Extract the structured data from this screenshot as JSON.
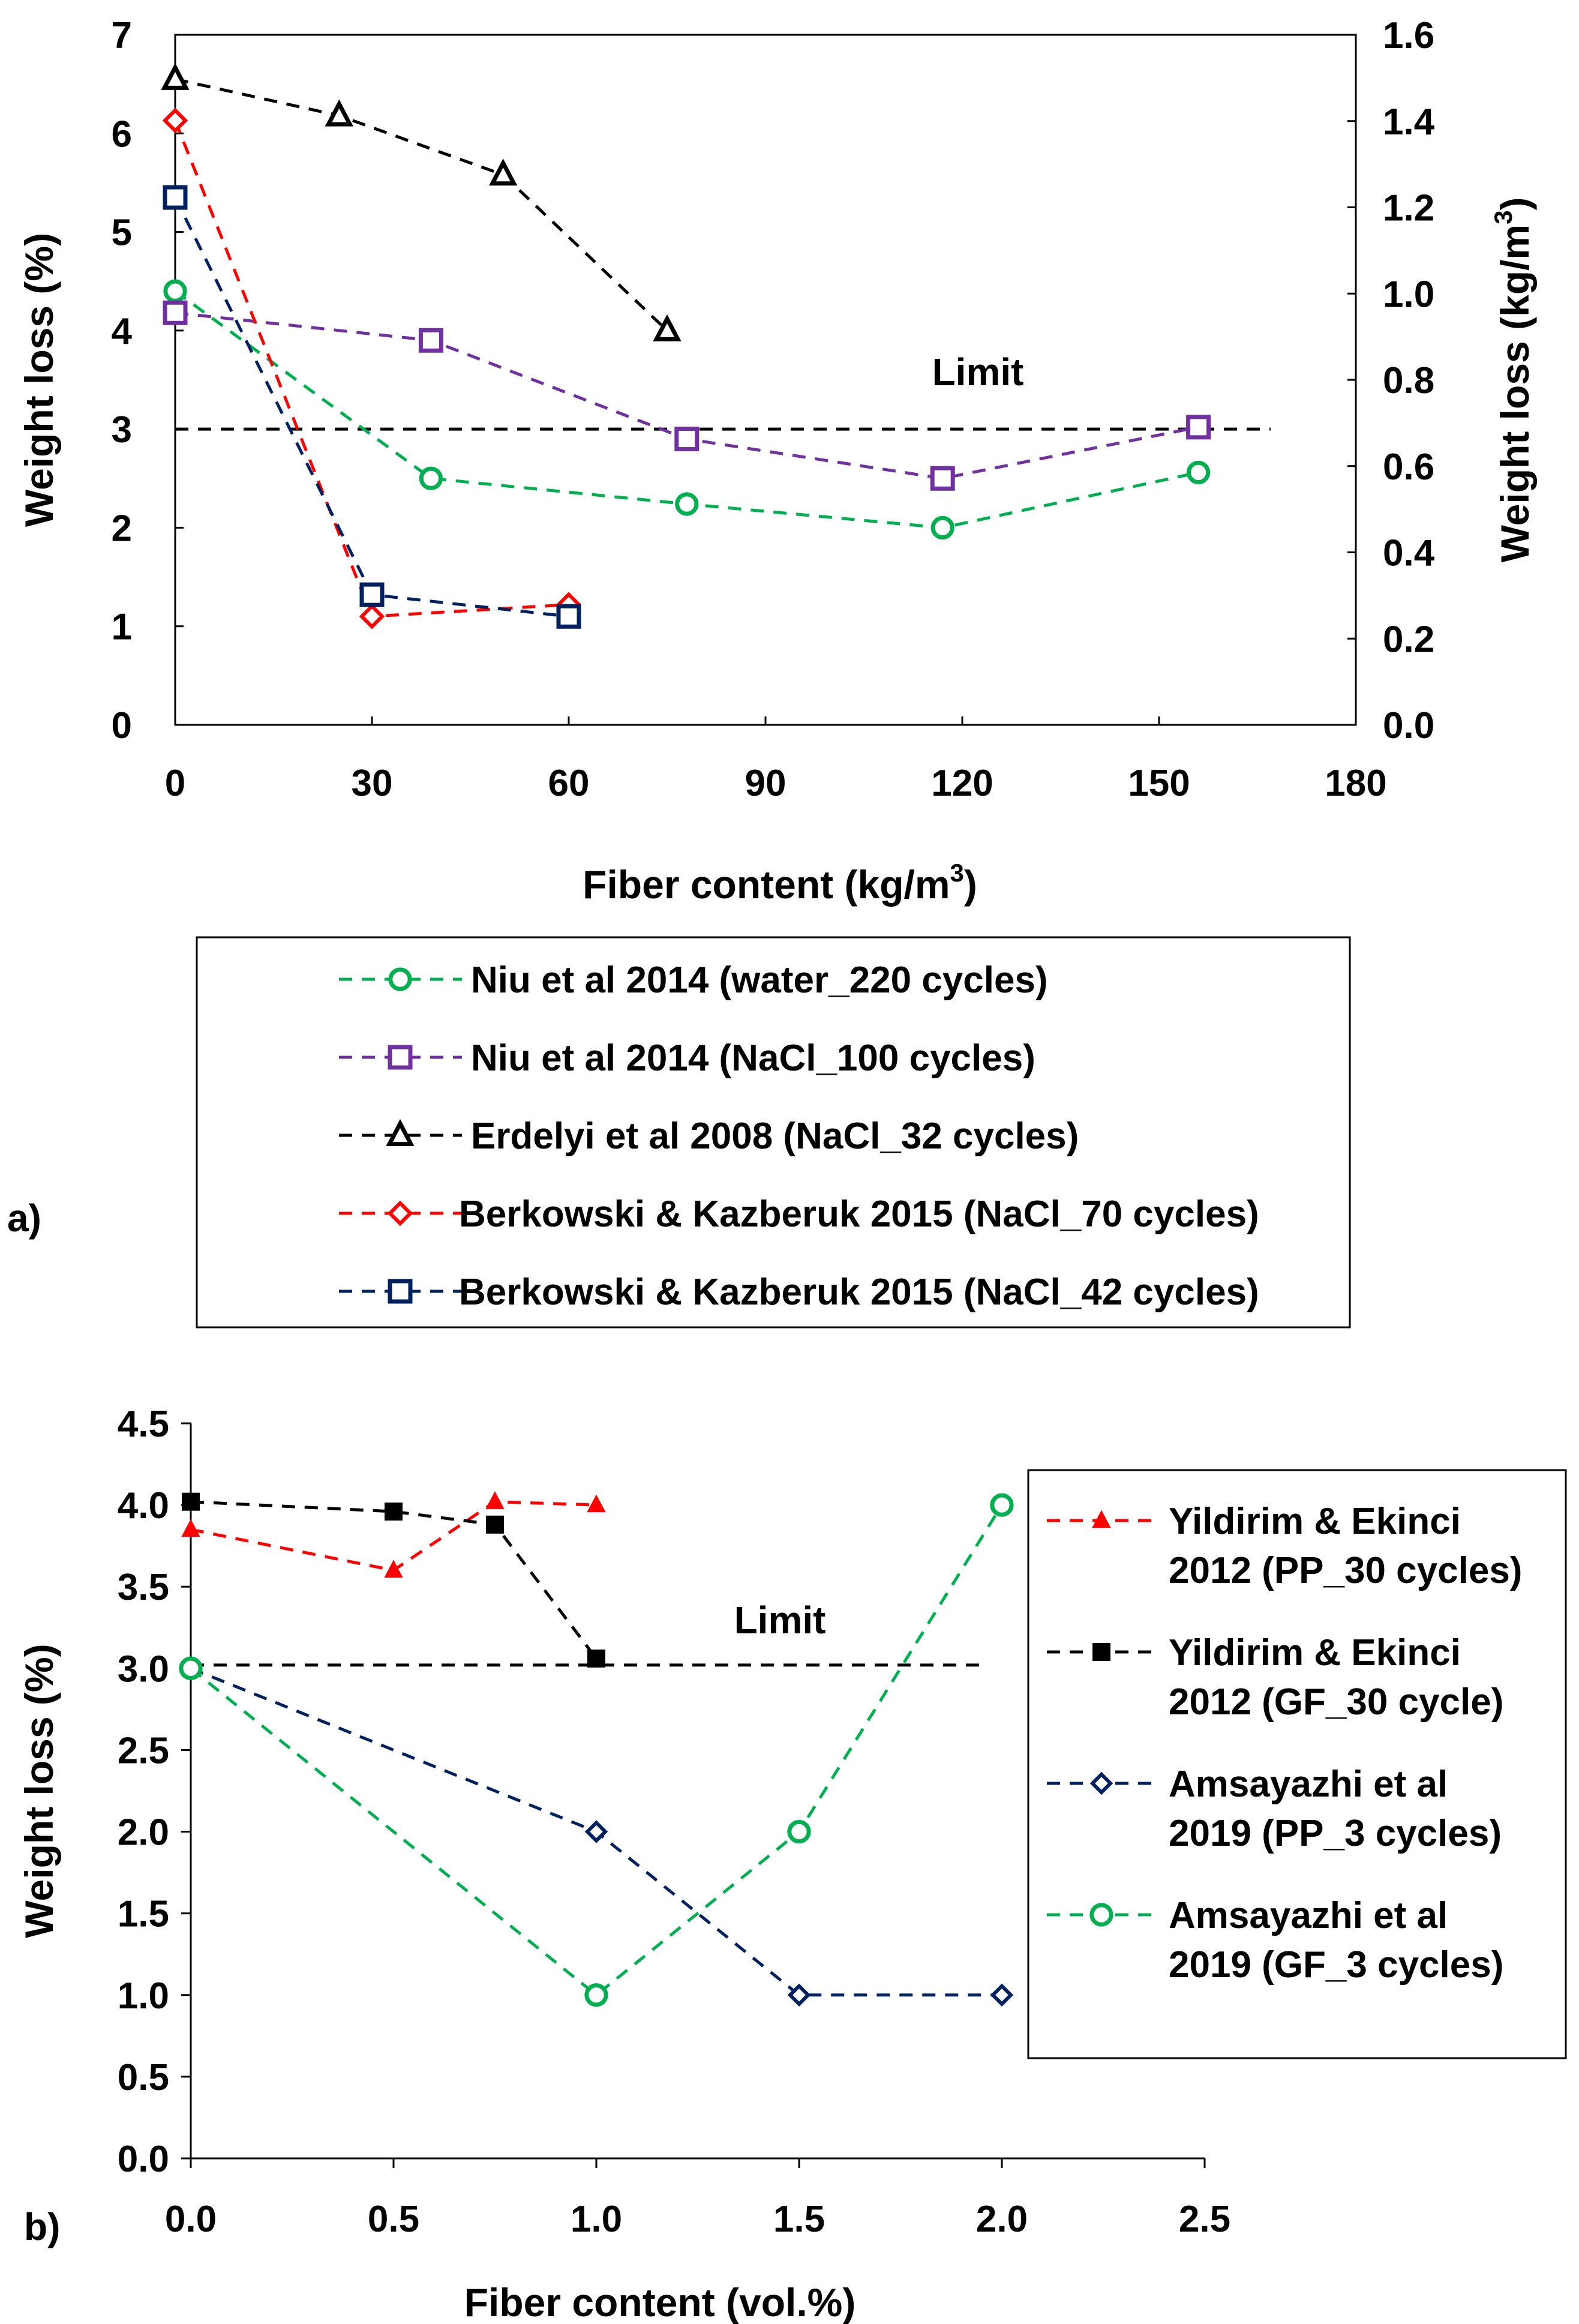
{
  "chart_data": [
    {
      "panel_label": "a)",
      "type": "line",
      "xlabel": "Fiber content (kg/m",
      "xlabel_sup": "3",
      "xlabel_suffix": ")",
      "ylabel": "Weight loss (%)",
      "y2label": "Weight loss (kg/m",
      "y2label_sup": "3",
      "y2label_suffix": ")",
      "xlim": [
        0,
        180
      ],
      "ylim": [
        0,
        7
      ],
      "y2lim": [
        0,
        1.6
      ],
      "xticks": [
        0,
        30,
        60,
        90,
        120,
        150,
        180
      ],
      "yticks": [
        0,
        1,
        2,
        3,
        4,
        5,
        6,
        7
      ],
      "y2ticks": [
        "0.0",
        "0.2",
        "0.4",
        "0.6",
        "0.8",
        "1.0",
        "1.2",
        "1.4",
        "1.6"
      ],
      "limit": {
        "label": "Limit",
        "y": 3,
        "x": [
          0,
          167
        ]
      },
      "series": [
        {
          "name": "Niu et al 2014 (water_220 cycles)",
          "color": "#00b050",
          "marker": "circle",
          "x": [
            0,
            39,
            78,
            117,
            156
          ],
          "y": [
            4.4,
            2.5,
            2.24,
            2.0,
            2.56
          ]
        },
        {
          "name": "Niu et al 2014 (NaCl_100 cycles)",
          "color": "#7030a0",
          "marker": "square",
          "x": [
            0,
            39,
            78,
            117,
            156
          ],
          "y": [
            4.18,
            3.9,
            2.9,
            2.5,
            3.02
          ]
        },
        {
          "name": "Erdelyi et al 2008 (NaCl_32 cycles)",
          "color": "#000000",
          "marker": "triangle",
          "x": [
            0,
            25,
            50,
            75
          ],
          "y": [
            6.55,
            6.18,
            5.58,
            4.0
          ]
        },
        {
          "name": "Berkowski & Kazberuk 2015 (NaCl_70 cycles)",
          "color": "#ff0000",
          "marker": "diamond",
          "x": [
            0,
            30,
            60
          ],
          "y": [
            6.13,
            1.1,
            1.22
          ]
        },
        {
          "name": "Berkowski & Kazberuk 2015 (NaCl_42 cycles)",
          "color": "#002060",
          "marker": "square",
          "x": [
            0,
            30,
            60
          ],
          "y": [
            5.35,
            1.32,
            1.1
          ]
        }
      ]
    },
    {
      "panel_label": "b)",
      "type": "line",
      "xlabel": "Fiber content (vol.%)",
      "ylabel": "Weight loss (%)",
      "xlim": [
        0,
        2.5
      ],
      "ylim": [
        0,
        4.5
      ],
      "xticks": [
        "0.0",
        "0.5",
        "1.0",
        "1.5",
        "2.0",
        "2.5"
      ],
      "yticks": [
        "0.0",
        "0.5",
        "1.0",
        "1.5",
        "2.0",
        "2.5",
        "3.0",
        "3.5",
        "4.0",
        "4.5"
      ],
      "limit": {
        "label": "Limit",
        "y": 3.02,
        "x": [
          0,
          1.95
        ]
      },
      "series": [
        {
          "name": "Yildirim & Ekinci 2012 (PP_30 cycles)",
          "name_lines": [
            "Yildirim & Ekinci",
            "2012 (PP_30 cycles)"
          ],
          "color": "#ff0000",
          "marker": "filled-triangle",
          "x": [
            0,
            0.5,
            0.75,
            1.0
          ],
          "y": [
            3.85,
            3.6,
            4.02,
            4.0
          ]
        },
        {
          "name": "Yildirim & Ekinci 2012 (GF_30 cycle)",
          "name_lines": [
            "Yildirim & Ekinci",
            "2012 (GF_30 cycle)"
          ],
          "color": "#000000",
          "marker": "filled-square",
          "x": [
            0,
            0.5,
            0.75,
            1.0
          ],
          "y": [
            4.02,
            3.96,
            3.88,
            3.06
          ]
        },
        {
          "name": "Amsayazhi et al 2019 (PP_3 cycles)",
          "name_lines": [
            "Amsayazhi et al",
            "2019 (PP_3 cycles)"
          ],
          "color": "#002060",
          "marker": "diamond",
          "x": [
            0,
            1.0,
            1.5,
            2.0
          ],
          "y": [
            3.0,
            2.0,
            1.0,
            1.0
          ]
        },
        {
          "name": "Amsayazhi et al 2019 (GF_3 cycles)",
          "name_lines": [
            "Amsayazhi et al",
            "2019 (GF_3 cycles)"
          ],
          "color": "#00b050",
          "marker": "circle",
          "x": [
            0,
            1.0,
            1.5,
            2.0
          ],
          "y": [
            3.0,
            1.0,
            2.0,
            4.0
          ]
        }
      ]
    }
  ]
}
